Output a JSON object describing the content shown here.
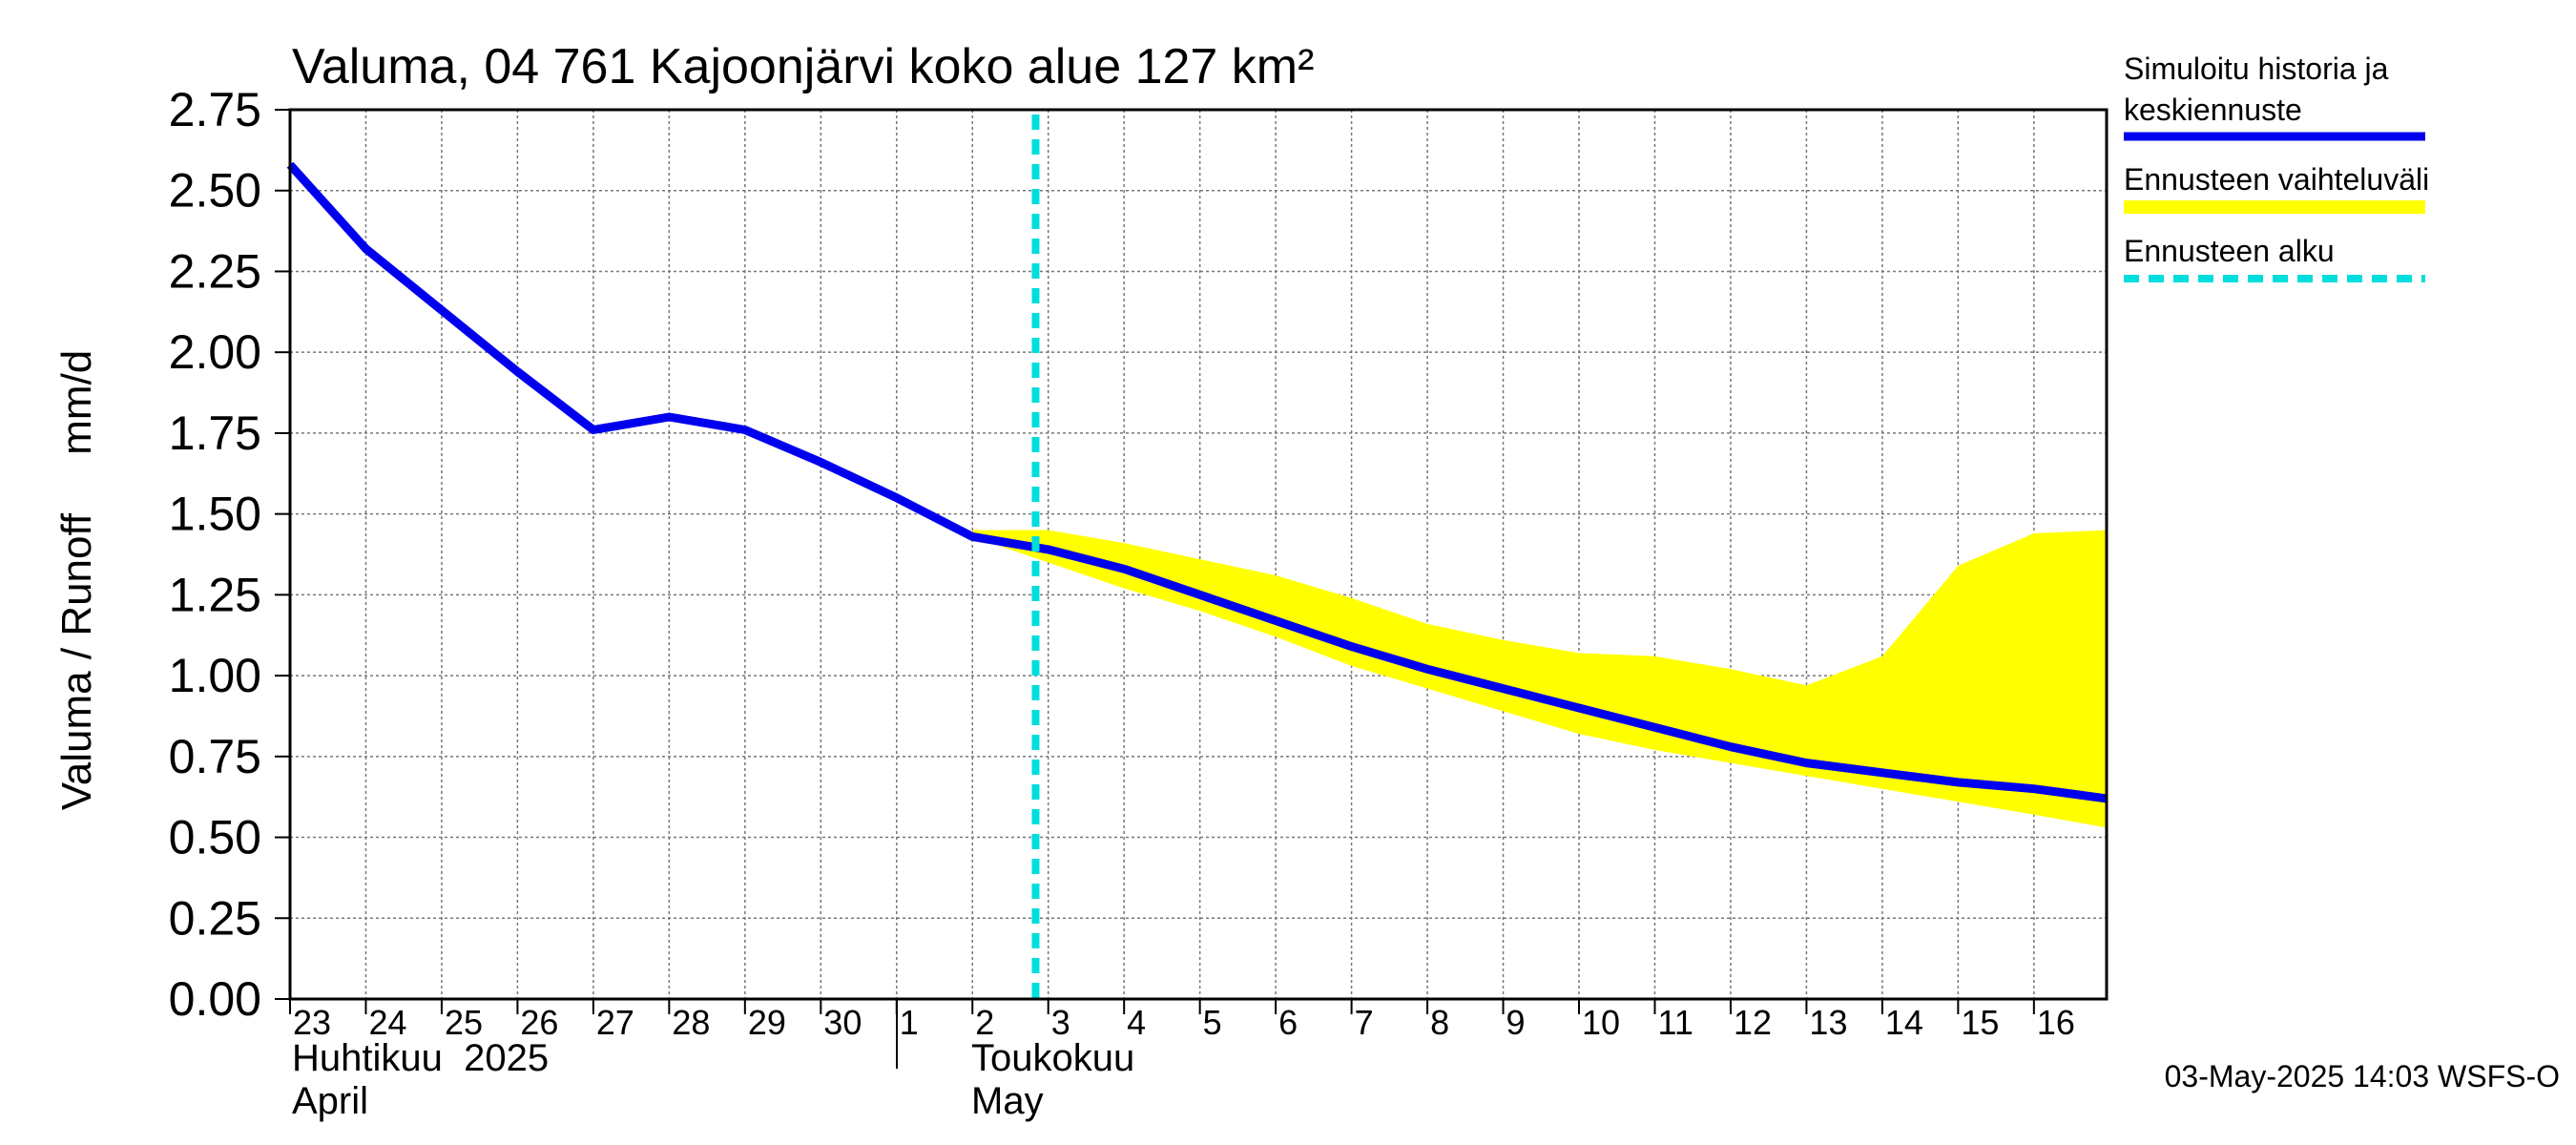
{
  "chart_data": {
    "type": "line",
    "title": "Valuma, 04 761 Kajoonjärvi koko alue 127 km²",
    "ylabel": "Valuma / Runoff     mm/d",
    "ylim": [
      0,
      2.75
    ],
    "y_ticks": [
      "0.00",
      "0.25",
      "0.50",
      "0.75",
      "1.00",
      "1.25",
      "1.50",
      "1.75",
      "2.00",
      "2.25",
      "2.50",
      "2.75"
    ],
    "x_range": [
      "2025-04-23",
      "2025-05-16T23:00"
    ],
    "x_tick_labels": [
      "23",
      "24",
      "25",
      "26",
      "27",
      "28",
      "29",
      "30",
      "1",
      "2",
      "3",
      "4",
      "5",
      "6",
      "7",
      "8",
      "9",
      "10",
      "11",
      "12",
      "13",
      "14",
      "15",
      "16"
    ],
    "month_labels": {
      "april_fi": "Huhtikuu  2025",
      "april_en": "April",
      "may_fi": "Toukokuu",
      "may_en": "May"
    },
    "grid": true,
    "forecast_start": "2025-05-02T20:00",
    "series": [
      {
        "name": "Simuloitu historia ja keskiennuste",
        "color": "#0000ee",
        "x": [
          "2025-04-23",
          "2025-04-24",
          "2025-04-25",
          "2025-04-26",
          "2025-04-27",
          "2025-04-28",
          "2025-04-29",
          "2025-04-30",
          "2025-05-01",
          "2025-05-02",
          "2025-05-03",
          "2025-05-04",
          "2025-05-05",
          "2025-05-06",
          "2025-05-07",
          "2025-05-08",
          "2025-05-09",
          "2025-05-10",
          "2025-05-11",
          "2025-05-12",
          "2025-05-13",
          "2025-05-14",
          "2025-05-15",
          "2025-05-16",
          "2025-05-16T23:00"
        ],
        "y": [
          2.58,
          2.32,
          2.13,
          1.94,
          1.76,
          1.8,
          1.76,
          1.66,
          1.55,
          1.43,
          1.39,
          1.33,
          1.25,
          1.17,
          1.09,
          1.02,
          0.96,
          0.9,
          0.84,
          0.78,
          0.73,
          0.7,
          0.67,
          0.65,
          0.62
        ]
      }
    ],
    "band": {
      "name": "Ennusteen vaihteluväli",
      "color": "#ffff00",
      "x": [
        "2025-05-02",
        "2025-05-03",
        "2025-05-04",
        "2025-05-05",
        "2025-05-06",
        "2025-05-07",
        "2025-05-08",
        "2025-05-09",
        "2025-05-10",
        "2025-05-11",
        "2025-05-12",
        "2025-05-13",
        "2025-05-14",
        "2025-05-15",
        "2025-05-16",
        "2025-05-16T23:00"
      ],
      "upper": [
        1.45,
        1.45,
        1.41,
        1.36,
        1.31,
        1.24,
        1.16,
        1.11,
        1.07,
        1.06,
        1.02,
        0.97,
        1.06,
        1.34,
        1.44,
        1.45
      ],
      "lower": [
        1.43,
        1.35,
        1.27,
        1.2,
        1.12,
        1.03,
        0.96,
        0.89,
        0.82,
        0.77,
        0.73,
        0.69,
        0.65,
        0.61,
        0.57,
        0.53
      ]
    },
    "forecast_line": {
      "name": "Ennusteen alku",
      "color": "#00dddd"
    }
  },
  "legend": {
    "sim_line1": "Simuloitu historia ja",
    "sim_line2": "keskiennuste",
    "range": "Ennusteen vaihteluväli",
    "start": "Ennusteen alku"
  },
  "footer": {
    "timestamp": "03-May-2025 14:03 WSFS-O"
  }
}
